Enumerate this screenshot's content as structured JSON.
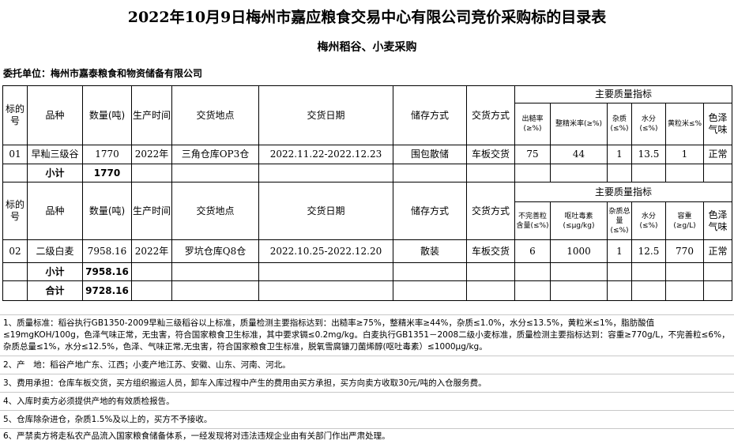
{
  "title": "2022年10月9日梅州市嘉应粮食交易中心有限公司竞价采购标的目录表",
  "subtitle": "梅州稻谷、小麦采购",
  "consignor": "委托单位：梅州市嘉泰粮食和物资储备有限公司",
  "common_headers": [
    "标的号",
    "品种",
    "数量(吨)",
    "生产时间",
    "交货地点",
    "交货日期",
    "储存方式",
    "交货方式"
  ],
  "quality_header": "主要质量指标",
  "section1": {
    "quality_cols": [
      "出糙率(≥%)",
      "整精米率(≥%)",
      "杂质(≤%)",
      "水分(≤%)",
      "黄粒米≤%",
      "色泽气味"
    ],
    "row": [
      "01",
      "早籼三级谷",
      "1770",
      "2022年",
      "三角仓库OP3仓",
      "2022.11.22-2022.12.23",
      "围包散储",
      "车板交货",
      "75",
      "44",
      "1",
      "13.5",
      "1",
      "正常"
    ],
    "subtotal_label": "小计",
    "subtotal": "1770"
  },
  "section2": {
    "quality_cols": [
      "不完善粒含量(≤%)",
      "呕吐毒素(≤μg/kg)",
      "杂质总量(≤%)",
      "水分(≤%)",
      "容重(≥g/L)",
      "色泽气味"
    ],
    "row": [
      "02",
      "二级白麦",
      "7958.16",
      "2022年",
      "罗坑仓库Q8仓",
      "2022.10.25-2022.12.20",
      "散装",
      "车板交货",
      "6",
      "1000",
      "1",
      "12.5",
      "770",
      "正常"
    ],
    "subtotal_label": "小计",
    "subtotal": "7958.16",
    "total_label": "合计",
    "total": "9728.16"
  },
  "notes": [
    "1、质量标准：稻谷执行GB1350-2009早籼三级稻谷以上标准，质量检测主要指标达到：出糙率≥75%，整精米率≥44%，杂质≤1.0%，水分≤13.5%，黄粒米≤1%，脂肪酸值≤19mgKOH/100g，色泽气味正常，无虫害，符合国家粮食卫生标准，其中要求镉≤0.2mg/kg。白麦执行GB1351－2008二级小麦标准，质量检测主要指标达到：容重≥770g/L，不完善粒≤6%，杂质总量≤1%，水分≤12.5%，色泽、气味正常,无虫害，符合国家粮食卫生标准，脱氧雪腐镰刀菌烯醇(呕吐毒素）≤1000μg/kg。",
    "2、产　地：稻谷产地广东、江西；小麦产地江苏、安徽、山东、河南、河北。",
    "3、费用承担：仓库车板交货，买方组织搬运人员，卸车入库过程中产生的费用由买方承担，买方向卖方收取30元/吨的入仓服务费。",
    "4、入库时卖方必须提供产地的有效质检报告。",
    "5、仓库除杂进仓，杂质1.5%及以上的，买方不予接收。",
    "6、严禁卖方将走私农产品流入国家粮食储备体系，一经发现将对违法违规企业由有关部门作出严肃处理。"
  ]
}
